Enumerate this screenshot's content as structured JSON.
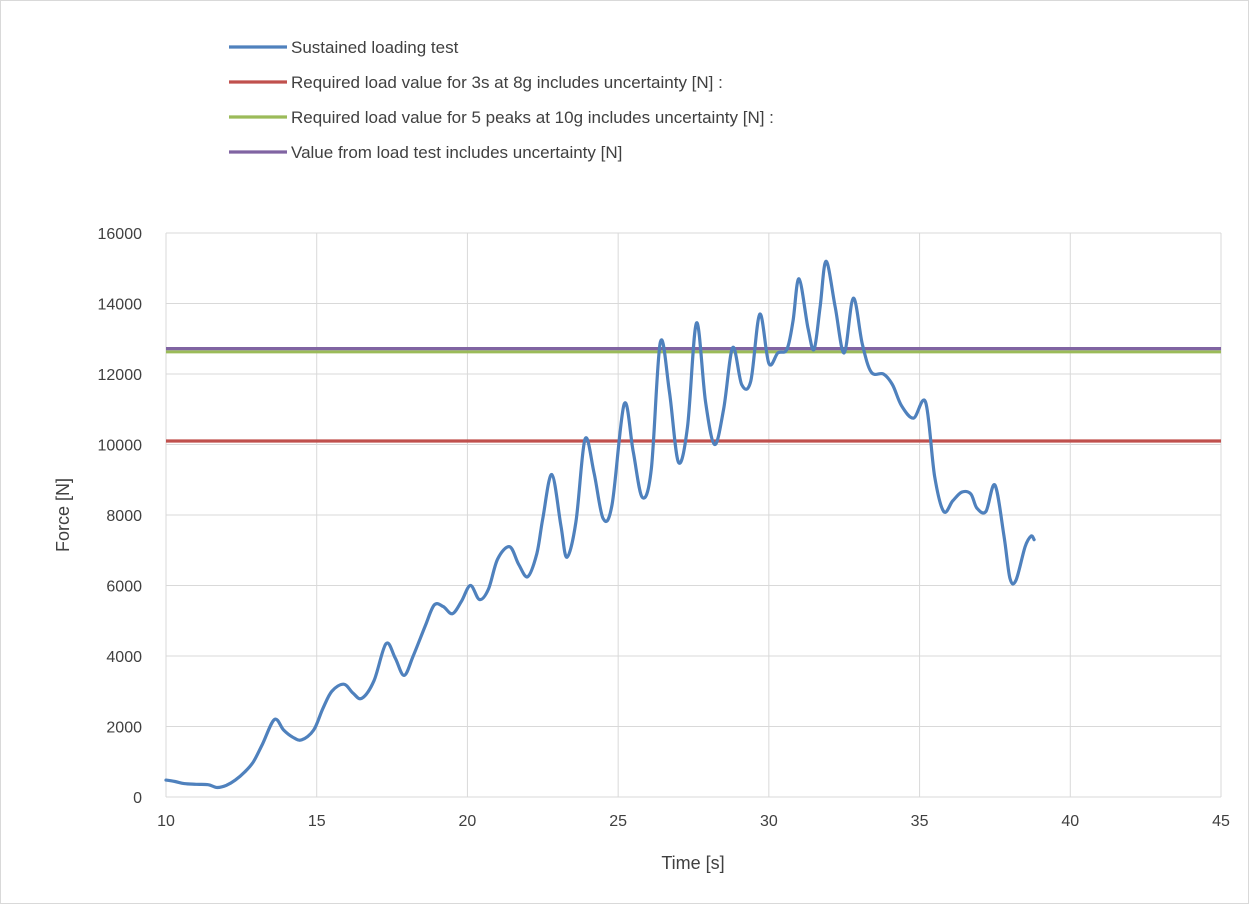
{
  "chart_data": {
    "type": "line",
    "title": "",
    "xlabel": "Time [s]",
    "ylabel": "Force [N]",
    "xlim": [
      10,
      45
    ],
    "ylim": [
      0,
      16000
    ],
    "x_ticks": [
      10,
      15,
      20,
      25,
      30,
      35,
      40,
      45
    ],
    "y_ticks": [
      0,
      2000,
      4000,
      6000,
      8000,
      10000,
      12000,
      14000,
      16000
    ],
    "grid": true,
    "legend_position": "top",
    "series": [
      {
        "name": "Sustained loading test",
        "color": "#4f81bd",
        "kind": "line",
        "points": [
          [
            10.0,
            480
          ],
          [
            10.3,
            440
          ],
          [
            10.6,
            380
          ],
          [
            11.0,
            360
          ],
          [
            11.4,
            350
          ],
          [
            11.7,
            270
          ],
          [
            12.0,
            330
          ],
          [
            12.3,
            480
          ],
          [
            12.6,
            700
          ],
          [
            12.9,
            1000
          ],
          [
            13.2,
            1500
          ],
          [
            13.6,
            2200
          ],
          [
            13.9,
            1900
          ],
          [
            14.2,
            1700
          ],
          [
            14.5,
            1620
          ],
          [
            14.9,
            1900
          ],
          [
            15.2,
            2500
          ],
          [
            15.5,
            3000
          ],
          [
            15.9,
            3200
          ],
          [
            16.2,
            2950
          ],
          [
            16.5,
            2800
          ],
          [
            16.9,
            3300
          ],
          [
            17.3,
            4350
          ],
          [
            17.6,
            3950
          ],
          [
            17.9,
            3450
          ],
          [
            18.2,
            4000
          ],
          [
            18.6,
            4850
          ],
          [
            18.9,
            5450
          ],
          [
            19.2,
            5400
          ],
          [
            19.5,
            5200
          ],
          [
            19.8,
            5550
          ],
          [
            20.1,
            6000
          ],
          [
            20.4,
            5600
          ],
          [
            20.7,
            5900
          ],
          [
            21.0,
            6750
          ],
          [
            21.4,
            7100
          ],
          [
            21.7,
            6600
          ],
          [
            22.0,
            6250
          ],
          [
            22.3,
            6900
          ],
          [
            22.5,
            7900
          ],
          [
            22.8,
            9150
          ],
          [
            23.1,
            7700
          ],
          [
            23.3,
            6800
          ],
          [
            23.6,
            7800
          ],
          [
            23.9,
            10150
          ],
          [
            24.2,
            9200
          ],
          [
            24.5,
            7900
          ],
          [
            24.8,
            8300
          ],
          [
            25.2,
            11150
          ],
          [
            25.5,
            9800
          ],
          [
            25.8,
            8500
          ],
          [
            26.1,
            9300
          ],
          [
            26.4,
            12900
          ],
          [
            26.7,
            11500
          ],
          [
            27.0,
            9500
          ],
          [
            27.3,
            10500
          ],
          [
            27.6,
            13450
          ],
          [
            27.9,
            11200
          ],
          [
            28.2,
            10000
          ],
          [
            28.5,
            11000
          ],
          [
            28.8,
            12750
          ],
          [
            29.1,
            11700
          ],
          [
            29.4,
            11800
          ],
          [
            29.7,
            13700
          ],
          [
            30.0,
            12300
          ],
          [
            30.3,
            12600
          ],
          [
            30.6,
            12700
          ],
          [
            30.8,
            13500
          ],
          [
            31.0,
            14700
          ],
          [
            31.3,
            13300
          ],
          [
            31.5,
            12700
          ],
          [
            31.7,
            13900
          ],
          [
            31.9,
            15200
          ],
          [
            32.2,
            13900
          ],
          [
            32.5,
            12600
          ],
          [
            32.8,
            14150
          ],
          [
            33.1,
            12850
          ],
          [
            33.4,
            12050
          ],
          [
            33.8,
            12000
          ],
          [
            34.1,
            11700
          ],
          [
            34.4,
            11100
          ],
          [
            34.8,
            10750
          ],
          [
            35.2,
            11200
          ],
          [
            35.5,
            9100
          ],
          [
            35.8,
            8100
          ],
          [
            36.1,
            8400
          ],
          [
            36.4,
            8650
          ],
          [
            36.7,
            8600
          ],
          [
            36.9,
            8200
          ],
          [
            37.2,
            8100
          ],
          [
            37.5,
            8850
          ],
          [
            37.8,
            7400
          ],
          [
            38.0,
            6200
          ],
          [
            38.2,
            6150
          ],
          [
            38.5,
            7100
          ],
          [
            38.7,
            7400
          ],
          [
            38.8,
            7300
          ]
        ]
      },
      {
        "name": "Required load value for 3s at 8g includes uncertainty [N] :",
        "color": "#c0504d",
        "kind": "hline",
        "value": 10100
      },
      {
        "name": "Required load value for 5 peaks at 10g includes uncertainty [N] :",
        "color": "#9bbb59",
        "kind": "hline",
        "value": 12630
      },
      {
        "name": "Value from load test includes uncertainty [N]",
        "color": "#8064a2",
        "kind": "hline",
        "value": 12720
      }
    ]
  }
}
